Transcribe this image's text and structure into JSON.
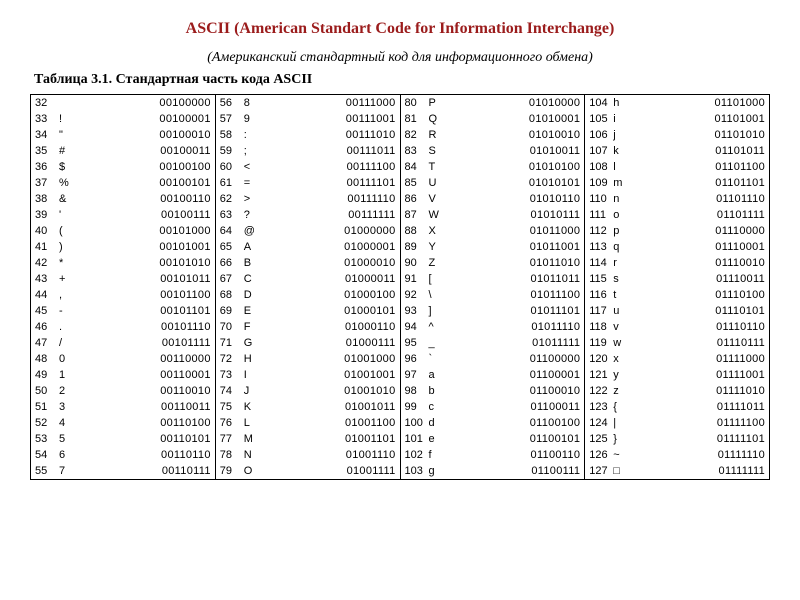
{
  "title": "ASCII (American Standart Code for Information Interchange)",
  "subtitle": "(Американский стандартный код для информационного обмена)",
  "table_label": "Таблица 3.1. Стандартная часть кода ASCII",
  "columns": [
    {
      "rows": [
        {
          "dec": "32",
          "char": " ",
          "bin": "00100000"
        },
        {
          "dec": "33",
          "char": "!",
          "bin": "00100001"
        },
        {
          "dec": "34",
          "char": "\"",
          "bin": "00100010"
        },
        {
          "dec": "35",
          "char": "#",
          "bin": "00100011"
        },
        {
          "dec": "36",
          "char": "$",
          "bin": "00100100"
        },
        {
          "dec": "37",
          "char": "%",
          "bin": "00100101"
        },
        {
          "dec": "38",
          "char": "&",
          "bin": "00100110"
        },
        {
          "dec": "39",
          "char": "'",
          "bin": "00100111"
        },
        {
          "dec": "40",
          "char": "(",
          "bin": "00101000"
        },
        {
          "dec": "41",
          "char": ")",
          "bin": "00101001"
        },
        {
          "dec": "42",
          "char": "*",
          "bin": "00101010"
        },
        {
          "dec": "43",
          "char": "+",
          "bin": "00101011"
        },
        {
          "dec": "44",
          "char": ",",
          "bin": "00101100"
        },
        {
          "dec": "45",
          "char": "-",
          "bin": "00101101"
        },
        {
          "dec": "46",
          "char": ".",
          "bin": "00101110"
        },
        {
          "dec": "47",
          "char": "/",
          "bin": "00101111"
        },
        {
          "dec": "48",
          "char": "0",
          "bin": "00110000"
        },
        {
          "dec": "49",
          "char": "1",
          "bin": "00110001"
        },
        {
          "dec": "50",
          "char": "2",
          "bin": "00110010"
        },
        {
          "dec": "51",
          "char": "3",
          "bin": "00110011"
        },
        {
          "dec": "52",
          "char": "4",
          "bin": "00110100"
        },
        {
          "dec": "53",
          "char": "5",
          "bin": "00110101"
        },
        {
          "dec": "54",
          "char": "6",
          "bin": "00110110"
        },
        {
          "dec": "55",
          "char": "7",
          "bin": "00110111"
        }
      ]
    },
    {
      "rows": [
        {
          "dec": "56",
          "char": "8",
          "bin": "00111000"
        },
        {
          "dec": "57",
          "char": "9",
          "bin": "00111001"
        },
        {
          "dec": "58",
          "char": ":",
          "bin": "00111010"
        },
        {
          "dec": "59",
          "char": ";",
          "bin": "00111011"
        },
        {
          "dec": "60",
          "char": "<",
          "bin": "00111100"
        },
        {
          "dec": "61",
          "char": "=",
          "bin": "00111101"
        },
        {
          "dec": "62",
          "char": ">",
          "bin": "00111110"
        },
        {
          "dec": "63",
          "char": "?",
          "bin": "00111111"
        },
        {
          "dec": "64",
          "char": "@",
          "bin": "01000000"
        },
        {
          "dec": "65",
          "char": "A",
          "bin": "01000001"
        },
        {
          "dec": "66",
          "char": "B",
          "bin": "01000010"
        },
        {
          "dec": "67",
          "char": "C",
          "bin": "01000011"
        },
        {
          "dec": "68",
          "char": "D",
          "bin": "01000100"
        },
        {
          "dec": "69",
          "char": "E",
          "bin": "01000101"
        },
        {
          "dec": "70",
          "char": "F",
          "bin": "01000110"
        },
        {
          "dec": "71",
          "char": "G",
          "bin": "01000111"
        },
        {
          "dec": "72",
          "char": "H",
          "bin": "01001000"
        },
        {
          "dec": "73",
          "char": "I",
          "bin": "01001001"
        },
        {
          "dec": "74",
          "char": "J",
          "bin": "01001010"
        },
        {
          "dec": "75",
          "char": "K",
          "bin": "01001011"
        },
        {
          "dec": "76",
          "char": "L",
          "bin": "01001100"
        },
        {
          "dec": "77",
          "char": "M",
          "bin": "01001101"
        },
        {
          "dec": "78",
          "char": "N",
          "bin": "01001110"
        },
        {
          "dec": "79",
          "char": "O",
          "bin": "01001111"
        }
      ]
    },
    {
      "rows": [
        {
          "dec": "80",
          "char": "P",
          "bin": "01010000"
        },
        {
          "dec": "81",
          "char": "Q",
          "bin": "01010001"
        },
        {
          "dec": "82",
          "char": "R",
          "bin": "01010010"
        },
        {
          "dec": "83",
          "char": "S",
          "bin": "01010011"
        },
        {
          "dec": "84",
          "char": "T",
          "bin": "01010100"
        },
        {
          "dec": "85",
          "char": "U",
          "bin": "01010101"
        },
        {
          "dec": "86",
          "char": "V",
          "bin": "01010110"
        },
        {
          "dec": "87",
          "char": "W",
          "bin": "01010111"
        },
        {
          "dec": "88",
          "char": "X",
          "bin": "01011000"
        },
        {
          "dec": "89",
          "char": "Y",
          "bin": "01011001"
        },
        {
          "dec": "90",
          "char": "Z",
          "bin": "01011010"
        },
        {
          "dec": "91",
          "char": "[",
          "bin": "01011011"
        },
        {
          "dec": "92",
          "char": "\\",
          "bin": "01011100"
        },
        {
          "dec": "93",
          "char": "]",
          "bin": "01011101"
        },
        {
          "dec": "94",
          "char": "^",
          "bin": "01011110"
        },
        {
          "dec": "95",
          "char": "_",
          "bin": "01011111"
        },
        {
          "dec": "96",
          "char": "`",
          "bin": "01100000"
        },
        {
          "dec": "97",
          "char": "a",
          "bin": "01100001"
        },
        {
          "dec": "98",
          "char": "b",
          "bin": "01100010"
        },
        {
          "dec": "99",
          "char": "c",
          "bin": "01100011"
        },
        {
          "dec": "100",
          "char": "d",
          "bin": "01100100"
        },
        {
          "dec": "101",
          "char": "e",
          "bin": "01100101"
        },
        {
          "dec": "102",
          "char": "f",
          "bin": "01100110"
        },
        {
          "dec": "103",
          "char": "g",
          "bin": "01100111"
        }
      ]
    },
    {
      "rows": [
        {
          "dec": "104",
          "char": "h",
          "bin": "01101000"
        },
        {
          "dec": "105",
          "char": "i",
          "bin": "01101001"
        },
        {
          "dec": "106",
          "char": "j",
          "bin": "01101010"
        },
        {
          "dec": "107",
          "char": "k",
          "bin": "01101011"
        },
        {
          "dec": "108",
          "char": "l",
          "bin": "01101100"
        },
        {
          "dec": "109",
          "char": "m",
          "bin": "01101101"
        },
        {
          "dec": "110",
          "char": "n",
          "bin": "01101110"
        },
        {
          "dec": "111",
          "char": "o",
          "bin": "01101111"
        },
        {
          "dec": "112",
          "char": "p",
          "bin": "01110000"
        },
        {
          "dec": "113",
          "char": "q",
          "bin": "01110001"
        },
        {
          "dec": "114",
          "char": "r",
          "bin": "01110010"
        },
        {
          "dec": "115",
          "char": "s",
          "bin": "01110011"
        },
        {
          "dec": "116",
          "char": "t",
          "bin": "01110100"
        },
        {
          "dec": "117",
          "char": "u",
          "bin": "01110101"
        },
        {
          "dec": "118",
          "char": "v",
          "bin": "01110110"
        },
        {
          "dec": "119",
          "char": "w",
          "bin": "01110111"
        },
        {
          "dec": "120",
          "char": "x",
          "bin": "01111000"
        },
        {
          "dec": "121",
          "char": "y",
          "bin": "01111001"
        },
        {
          "dec": "122",
          "char": "z",
          "bin": "01111010"
        },
        {
          "dec": "123",
          "char": "{",
          "bin": "01111011"
        },
        {
          "dec": "124",
          "char": "|",
          "bin": "01111100"
        },
        {
          "dec": "125",
          "char": "}",
          "bin": "01111101"
        },
        {
          "dec": "126",
          "char": "~",
          "bin": "01111110"
        },
        {
          "dec": "127",
          "char": "□",
          "bin": "01111111"
        }
      ]
    }
  ]
}
